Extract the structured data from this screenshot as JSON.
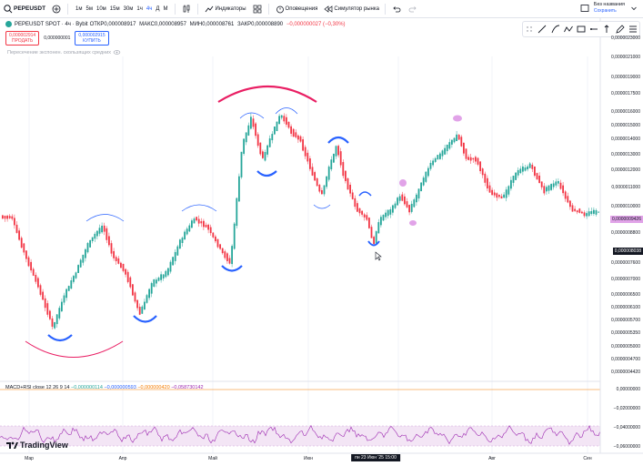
{
  "toolbar": {
    "symbol": "PEPEUSDT",
    "intervals": [
      "1м",
      "5м",
      "10м",
      "15м",
      "30м",
      "1ч",
      "4ч",
      "Д",
      "М"
    ],
    "active_interval": "4ч",
    "indicators_label": "Индикаторы",
    "alerts_label": "Оповещения",
    "replay_label": "Симулятор рынка",
    "layout_name": "Без названия",
    "layout_save": "Сохранить"
  },
  "legend": {
    "title": "PEPEUSDT SPOT · 4ч · Bybit",
    "open": "ОТКР0,000008917",
    "high": "МАКС0,000008957",
    "low": "МИН0,000008761",
    "close": "ЗАКР0,000008890",
    "change": "−0,000000027 (−0,30%)"
  },
  "trade": {
    "sell_price": "0,000002914",
    "sell_label": "ПРОДАТЬ",
    "spread": "0,000000001",
    "buy_price": "0,000002915",
    "buy_label": "КУПИТЬ"
  },
  "indicator_overlay": "Пересечение экспонен. скользящих средних",
  "price_axis": {
    "labels": [
      "0,0000023000",
      "0,0000021000",
      "0,0000019000",
      "0,0000017500",
      "0,0000016000",
      "0,0000015000",
      "0,0000014000",
      "0,0000013000",
      "0,0000012000",
      "0,0000011000",
      "0,0000010000",
      "0,0000009420",
      "0,0000008800",
      "0,0000008200",
      "0,0000007600",
      "0,0000007000",
      "0,0000006500",
      "0,0000006100",
      "0,0000005700",
      "0,0000005350",
      "0,0000005000",
      "0,0000004700",
      "0,0000004420"
    ],
    "current_price": "0,000008038",
    "hover_price": "0,0000009426"
  },
  "macd": {
    "label": "MACD+RSI close 12 26 9 14",
    "v1": "−0,000000114",
    "v2": "−0,000000593",
    "v3": "−0,000000420",
    "v4": "−0,058730142",
    "axis": [
      "0,00000000",
      "−0,02000000",
      "−0,04000000",
      "−0,06000000"
    ]
  },
  "dates": [
    "Мар",
    "Апр",
    "Май",
    "Июн",
    "Июл",
    "Авг",
    "Сен"
  ],
  "crosshair_date": "пн 23 Июн '25   15:00",
  "brand": "TradingView",
  "colors": {
    "accent": "#2962ff",
    "up": "#26a69a",
    "down": "#f23645",
    "arc_red": "#e91e63",
    "arc_blue": "#2962ff",
    "pink": "#e1a3e8",
    "rsi": "#9c27b0"
  }
}
